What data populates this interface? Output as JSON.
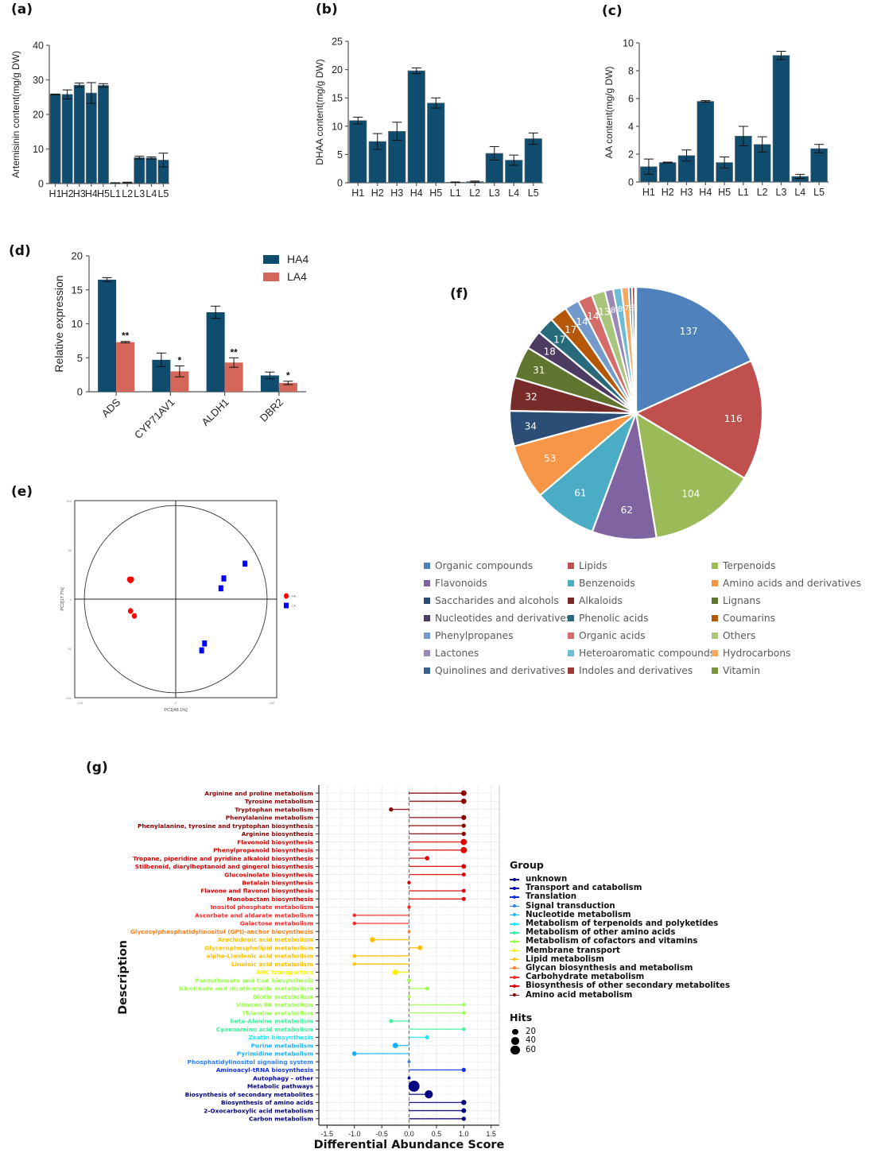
{
  "panel_labels": {
    "a": "(a)",
    "b": "(b)",
    "c": "(c)",
    "d": "(d)",
    "e": "(e)",
    "f": "(f)",
    "g": "(g)"
  },
  "colors": {
    "bar": "#0f4c6e",
    "ha4": "#0f4c6e",
    "la4": "#d5675a",
    "pca_ha": "#ff0000",
    "pca_la": "#0000ff"
  },
  "chart_data": [
    {
      "id": "a",
      "type": "bar",
      "title": "",
      "categories": [
        "H1",
        "H2",
        "H3",
        "H4",
        "H5",
        "L1",
        "L2",
        "L3",
        "L4",
        "L5"
      ],
      "values": [
        25.8,
        25.8,
        28.5,
        26.2,
        28.4,
        0.2,
        0.3,
        7.5,
        7.4,
        6.8
      ],
      "errors": [
        0.1,
        1.3,
        0.6,
        3.0,
        0.5,
        0.05,
        0.1,
        0.4,
        0.3,
        2.0
      ],
      "xlabel": "",
      "ylabel": "Artemisinin content(mg/g DW)",
      "ylim": [
        0,
        40
      ],
      "yticks": [
        0,
        10,
        20,
        30,
        40
      ]
    },
    {
      "id": "b",
      "type": "bar",
      "title": "",
      "categories": [
        "H1",
        "H2",
        "H3",
        "H4",
        "H5",
        "L1",
        "L2",
        "L3",
        "L4",
        "L5"
      ],
      "values": [
        11.0,
        7.3,
        9.1,
        19.8,
        14.1,
        0.1,
        0.2,
        5.2,
        4.0,
        7.8
      ],
      "errors": [
        0.6,
        1.4,
        1.6,
        0.5,
        0.9,
        0.05,
        0.1,
        1.2,
        0.9,
        1.0
      ],
      "xlabel": "",
      "ylabel": "DHAA content(mg/g DW)",
      "ylim": [
        0,
        25
      ],
      "yticks": [
        0,
        5,
        10,
        15,
        20,
        25
      ]
    },
    {
      "id": "c",
      "type": "bar",
      "title": "",
      "categories": [
        "H1",
        "H2",
        "H3",
        "H4",
        "H5",
        "L1",
        "L2",
        "L3",
        "L4",
        "L5"
      ],
      "values": [
        1.1,
        1.4,
        1.9,
        5.8,
        1.4,
        3.3,
        2.7,
        9.1,
        0.4,
        2.4
      ],
      "errors": [
        0.55,
        0.03,
        0.4,
        0.05,
        0.4,
        0.7,
        0.55,
        0.3,
        0.15,
        0.3
      ],
      "xlabel": "",
      "ylabel": "AA content(mg/g DW)",
      "ylim": [
        0,
        10
      ],
      "yticks": [
        0,
        2,
        4,
        6,
        8,
        10
      ]
    },
    {
      "id": "d",
      "type": "bar",
      "title": "",
      "categories": [
        "ADS",
        "CYP71AV1",
        "ALDH1",
        "DBR2"
      ],
      "series": [
        {
          "name": "HA4",
          "values": [
            16.5,
            4.7,
            11.7,
            2.4
          ],
          "errors": [
            0.3,
            1.0,
            0.9,
            0.5
          ]
        },
        {
          "name": "LA4",
          "values": [
            7.3,
            3.0,
            4.3,
            1.3
          ],
          "errors": [
            0.1,
            0.8,
            0.7,
            0.25
          ],
          "significance": [
            "**",
            "*",
            "**",
            "*"
          ]
        }
      ],
      "xlabel": "",
      "ylabel": "Relative expression",
      "ylim": [
        0,
        20
      ],
      "yticks": [
        0,
        5,
        10,
        15,
        20
      ],
      "legend": "top-right"
    },
    {
      "id": "e",
      "type": "scatter",
      "title": "",
      "xlabel": "PC1[48.1%]",
      "ylabel": "PC2[17.7%]",
      "xlim": [
        -105,
        105
      ],
      "ylim": [
        -100,
        100
      ],
      "xticks": [
        -100,
        0,
        100
      ],
      "yticks": [
        -100,
        -50,
        0,
        50,
        100
      ],
      "series": [
        {
          "name": "HA",
          "marker": "circle",
          "points": [
            [
              -48,
              20
            ],
            [
              -46,
              20
            ],
            [
              -47,
              19
            ],
            [
              -47,
              -12
            ],
            [
              -43,
              -17
            ]
          ]
        },
        {
          "name": "LA",
          "marker": "square",
          "points": [
            [
              72,
              36
            ],
            [
              50,
              21
            ],
            [
              47,
              11
            ],
            [
              30,
              -45
            ],
            [
              27,
              -52
            ]
          ]
        }
      ],
      "ellipse": "confidence circle",
      "legend": "right"
    },
    {
      "id": "f",
      "type": "pie",
      "title": "",
      "labels": [
        "Organic compounds",
        "Lipids",
        "Terpenoids",
        "Flavonoids",
        "Benzenoids",
        "Amino acids and derivatives",
        "Saccharides and alcohols",
        "Alkaloids",
        "Lignans",
        "Nucleotides and derivatives",
        "Phenolic acids",
        "Coumarins",
        "Phenylpropanes",
        "Organic acids",
        "Others",
        "Lactones",
        "Heteroaromatic compounds",
        "Hydrocarbons",
        "Quinolines and derivatives",
        "Indoles and derivatives",
        "Vitamin"
      ],
      "values": [
        137,
        116,
        104,
        62,
        61,
        53,
        34,
        32,
        31,
        18,
        17,
        17,
        14,
        14,
        13,
        8,
        8,
        7,
        3,
        3,
        1
      ],
      "colors": [
        "#4f81bd",
        "#c0504d",
        "#9bbb59",
        "#8064a2",
        "#4bacc6",
        "#f79646",
        "#2c4d75",
        "#772c2a",
        "#5f7530",
        "#4d3b62",
        "#276a7c",
        "#b65708",
        "#729aca",
        "#d46b68",
        "#a9c57c",
        "#9b87b5",
        "#6dbcd4",
        "#f7a860",
        "#3a5f8f",
        "#9b3a37",
        "#79923b"
      ],
      "legend": "bottom"
    },
    {
      "id": "g",
      "type": "scatter",
      "subtype": "lollipop",
      "title": "",
      "xlabel": "Differential Abundance Score",
      "ylabel": "Description",
      "xlim": [
        -1.65,
        1.65
      ],
      "xticks": [
        -1.5,
        -1.0,
        -0.5,
        0.0,
        0.5,
        1.0,
        1.5
      ],
      "groups": [
        {
          "name": "unknown",
          "color": "#000080"
        },
        {
          "name": "Transport and catabolism",
          "color": "#0000b0"
        },
        {
          "name": "Translation",
          "color": "#1030e8"
        },
        {
          "name": "Signal transduction",
          "color": "#2a7fff"
        },
        {
          "name": "Nucleotide metabolism",
          "color": "#1ab2ff"
        },
        {
          "name": "Metabolism of terpenoids and polyketides",
          "color": "#22e5ff"
        },
        {
          "name": "Metabolism of other amino acids",
          "color": "#40f0a0"
        },
        {
          "name": "Metabolism of cofactors and vitamins",
          "color": "#9cff50"
        },
        {
          "name": "Membrane transport",
          "color": "#f5f500"
        },
        {
          "name": "Lipid metabolism",
          "color": "#ffc000"
        },
        {
          "name": "Glycan biosynthesis and metabolism",
          "color": "#ff8020"
        },
        {
          "name": "Carbohydrate metabolism",
          "color": "#ff2a2a"
        },
        {
          "name": "Biosynthesis of other secondary metabolites",
          "color": "#dd0000"
        },
        {
          "name": "Amino acid metabolism",
          "color": "#8b0000"
        }
      ],
      "hits_legend": [
        20,
        40,
        60
      ],
      "rows": [
        {
          "label": "Arginine and proline metabolism",
          "group": "Amino acid metabolism",
          "score": 1.0,
          "hits": 10
        },
        {
          "label": "Tyrosine metabolism",
          "group": "Amino acid metabolism",
          "score": 1.0,
          "hits": 9
        },
        {
          "label": "Tryptophan metabolism",
          "group": "Amino acid metabolism",
          "score": -0.33,
          "hits": 4
        },
        {
          "label": "Phenylalanine metabolism",
          "group": "Amino acid metabolism",
          "score": 1.0,
          "hits": 7
        },
        {
          "label": "Phenylalanine, tyrosine and tryptophan biosynthesis",
          "group": "Amino acid metabolism",
          "score": 1.0,
          "hits": 4
        },
        {
          "label": "Arginine biosynthesis",
          "group": "Amino acid metabolism",
          "score": 1.0,
          "hits": 4
        },
        {
          "label": "Flavonoid biosynthesis",
          "group": "Biosynthesis of other secondary metabolites",
          "score": 1.0,
          "hits": 14
        },
        {
          "label": "Phenylpropanoid biosynthesis",
          "group": "Biosynthesis of other secondary metabolites",
          "score": 1.0,
          "hits": 14
        },
        {
          "label": "Tropane, piperidine and pyridine alkaloid biosynthesis",
          "group": "Biosynthesis of other secondary metabolites",
          "score": 0.33,
          "hits": 5
        },
        {
          "label": "Stilbenoid, diarylheptanoid and gingerol biosynthesis",
          "group": "Biosynthesis of other secondary metabolites",
          "score": 1.0,
          "hits": 6
        },
        {
          "label": "Glucosinolate biosynthesis",
          "group": "Biosynthesis of other secondary metabolites",
          "score": 1.0,
          "hits": 3
        },
        {
          "label": "Betalain biosynthesis",
          "group": "Biosynthesis of other secondary metabolites",
          "score": 0.0,
          "hits": 2
        },
        {
          "label": "Flavone and flavonol biosynthesis",
          "group": "Biosynthesis of other secondary metabolites",
          "score": 1.0,
          "hits": 3
        },
        {
          "label": "Monobactam biosynthesis",
          "group": "Biosynthesis of other secondary metabolites",
          "score": 1.0,
          "hits": 3
        },
        {
          "label": "Inositol phosphate metabolism",
          "group": "Carbohydrate metabolism",
          "score": 0.0,
          "hits": 2
        },
        {
          "label": "Ascorbate and aldarate metabolism",
          "group": "Carbohydrate metabolism",
          "score": -1.0,
          "hits": 2
        },
        {
          "label": "Galactose metabolism",
          "group": "Carbohydrate metabolism",
          "score": -1.0,
          "hits": 2
        },
        {
          "label": "Glycosylphosphatidylinositol (GPI)-anchor biosynthesis",
          "group": "Glycan biosynthesis and metabolism",
          "score": 0.0,
          "hits": 1
        },
        {
          "label": "Arachidonic acid metabolism",
          "group": "Lipid metabolism",
          "score": -0.67,
          "hits": 8
        },
        {
          "label": "Glycerophospholipid metabolism",
          "group": "Lipid metabolism",
          "score": 0.2,
          "hits": 6
        },
        {
          "label": "alpha-Linolenic acid metabolism",
          "group": "Lipid metabolism",
          "score": -1.0,
          "hits": 2
        },
        {
          "label": "Linoleic acid metabolism",
          "group": "Lipid metabolism",
          "score": -1.0,
          "hits": 2
        },
        {
          "label": "ABC transporters",
          "group": "Membrane transport",
          "score": -0.25,
          "hits": 10
        },
        {
          "label": "Pantothenate and CoA biosynthesis",
          "group": "Metabolism of cofactors and vitamins",
          "score": 0.0,
          "hits": 3
        },
        {
          "label": "Nicotinate and nicotinamide metabolism",
          "group": "Metabolism of cofactors and vitamins",
          "score": 0.33,
          "hits": 3
        },
        {
          "label": "Biotin metabolism",
          "group": "Metabolism of cofactors and vitamins",
          "score": 0.0,
          "hits": 1
        },
        {
          "label": "Vitamin B6 metabolism",
          "group": "Metabolism of cofactors and vitamins",
          "score": 1.0,
          "hits": 2
        },
        {
          "label": "Thiamine metabolism",
          "group": "Metabolism of cofactors and vitamins",
          "score": 1.0,
          "hits": 2
        },
        {
          "label": "beta-Alanine metabolism",
          "group": "Metabolism of other amino acids",
          "score": -0.33,
          "hits": 3
        },
        {
          "label": "Cyanoamino acid metabolism",
          "group": "Metabolism of other amino acids",
          "score": 1.0,
          "hits": 2
        },
        {
          "label": "Zeatin biosynthesis",
          "group": "Metabolism of terpenoids and polyketides",
          "score": 0.33,
          "hits": 4
        },
        {
          "label": "Purine metabolism",
          "group": "Nucleotide metabolism",
          "score": -0.25,
          "hits": 10
        },
        {
          "label": "Pyrimidine metabolism",
          "group": "Nucleotide metabolism",
          "score": -1.0,
          "hits": 6
        },
        {
          "label": "Phosphatidylinositol signaling system",
          "group": "Signal transduction",
          "score": 0.0,
          "hits": 1
        },
        {
          "label": "Aminoacyl-tRNA biosynthesis",
          "group": "Translation",
          "score": 1.0,
          "hits": 4
        },
        {
          "label": "Autophagy - other",
          "group": "Transport and catabolism",
          "score": 0.0,
          "hits": 1
        },
        {
          "label": "Metabolic pathways",
          "group": "unknown",
          "score": 0.09,
          "hits": 64
        },
        {
          "label": "Biosynthesis of secondary metabolites",
          "group": "unknown",
          "score": 0.36,
          "hits": 30
        },
        {
          "label": "Biosynthesis of amino acids",
          "group": "unknown",
          "score": 1.0,
          "hits": 8
        },
        {
          "label": "2-Oxocarboxylic acid metabolism",
          "group": "unknown",
          "score": 1.0,
          "hits": 6
        },
        {
          "label": "Carbon metabolism",
          "group": "unknown",
          "score": 1.0,
          "hits": 4
        }
      ]
    }
  ],
  "legend_titles": {
    "group": "Group",
    "hits": "Hits"
  },
  "pca_legend": [
    "HA",
    "LA"
  ]
}
